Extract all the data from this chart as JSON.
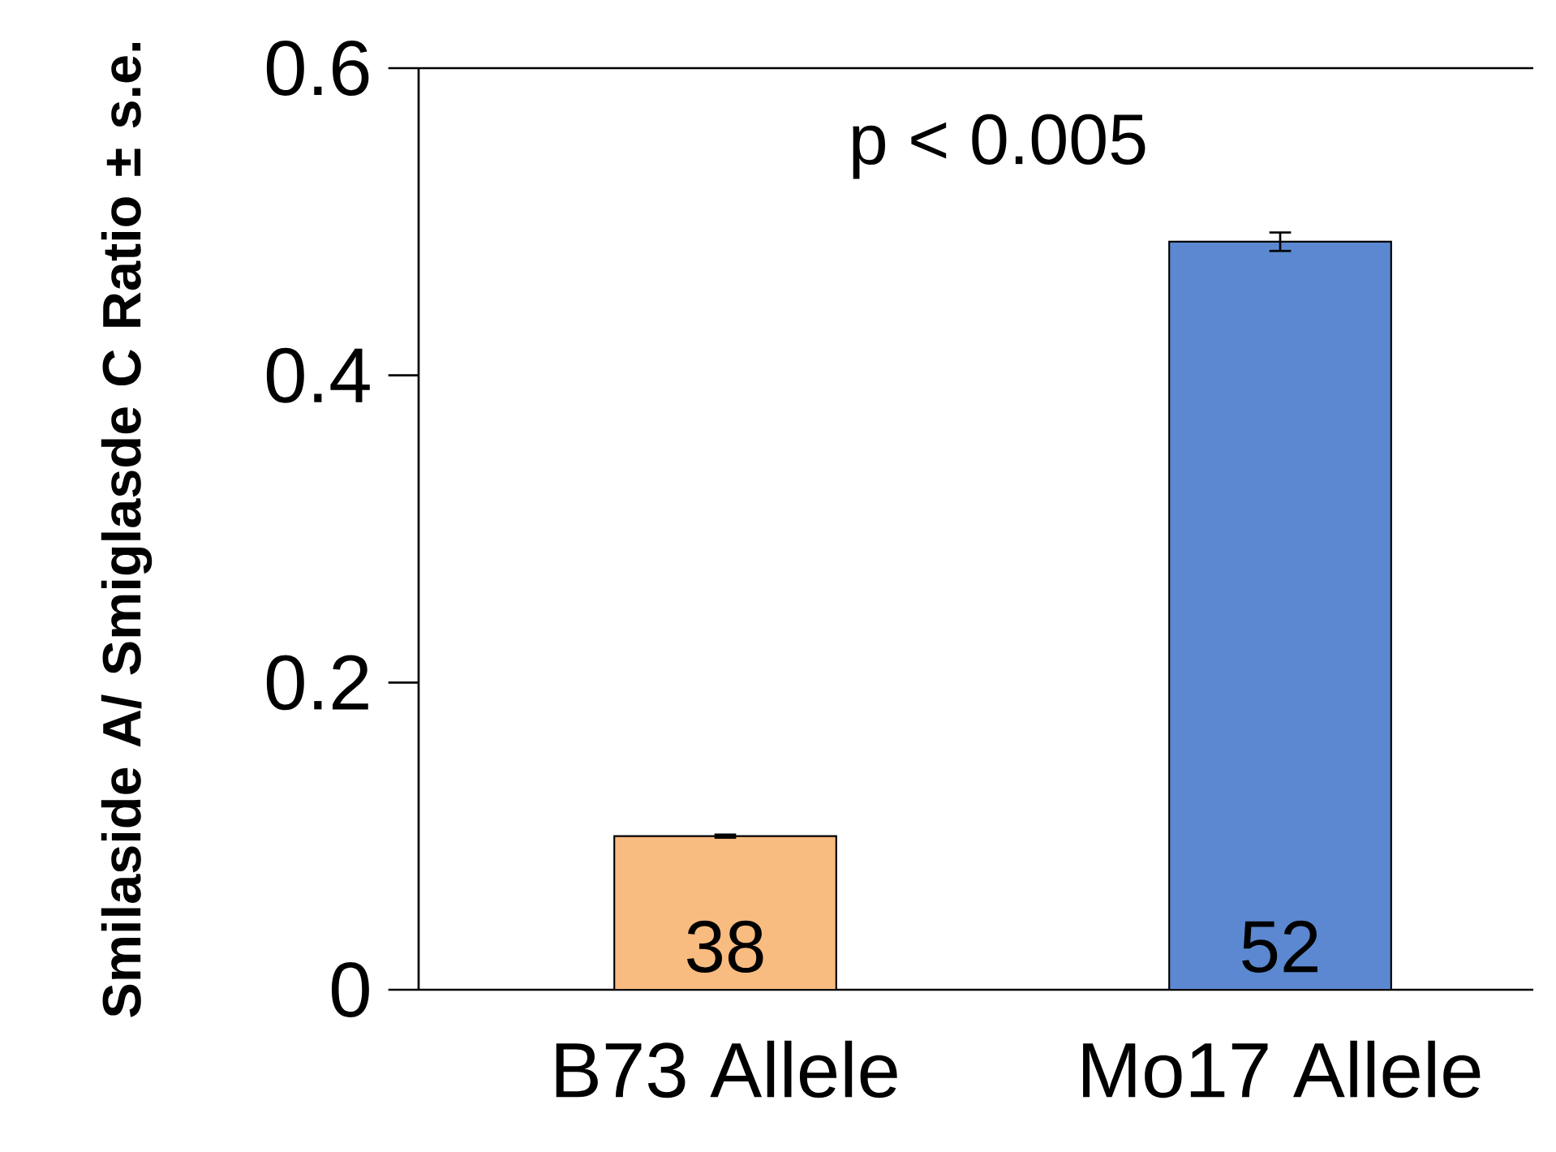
{
  "chart_data": {
    "type": "bar",
    "ylabel": "Smilaside A/ Smiglasde C Ratio ± s.e.",
    "categories": [
      "B73 Allele",
      "Mo17 Allele"
    ],
    "values": [
      0.1,
      0.487
    ],
    "colors": [
      "#f8bb80",
      "#5b88d0"
    ],
    "errors": [
      0.001,
      0.006
    ],
    "ylim": [
      0,
      0.6
    ],
    "yticks": [
      0,
      0.2,
      0.4,
      0.6
    ],
    "grid": false,
    "annotations": [
      "p < 0.005",
      "38",
      "52"
    ]
  }
}
